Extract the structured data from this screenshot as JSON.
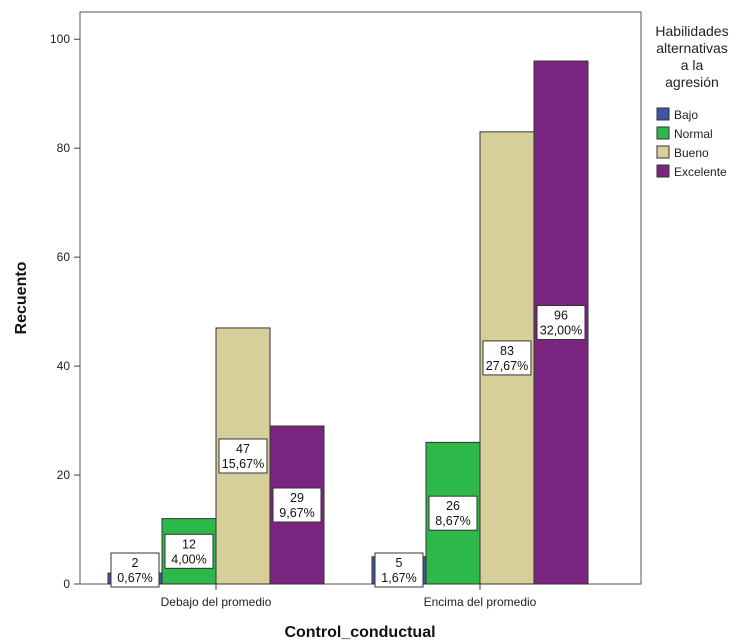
{
  "chart_data": {
    "type": "bar",
    "xlabel": "Control_conductual",
    "ylabel": "Recuento",
    "categories": [
      "Debajo del promedio",
      "Encima del promedio"
    ],
    "ylim": [
      0,
      105
    ],
    "yticks": [
      "0",
      "20",
      "40",
      "60",
      "80",
      "100"
    ],
    "legend_title_lines": [
      "Habilidades",
      "alternativas",
      "a la",
      "agresión"
    ],
    "legend_position": "right",
    "grid": false,
    "series": [
      {
        "name": "Bajo",
        "color": "#3f56a8",
        "values": [
          2,
          5
        ],
        "labels": [
          "0,67%",
          "1,67%"
        ]
      },
      {
        "name": "Normal",
        "color": "#2db84a",
        "values": [
          12,
          26
        ],
        "labels": [
          "4,00%",
          "8,67%"
        ]
      },
      {
        "name": "Bueno",
        "color": "#d6cf9a",
        "values": [
          47,
          83
        ],
        "labels": [
          "15,67%",
          "27,67%"
        ]
      },
      {
        "name": "Excelente",
        "color": "#7a2681",
        "values": [
          29,
          96
        ],
        "labels": [
          "9,67%",
          "32,00%"
        ]
      }
    ]
  }
}
